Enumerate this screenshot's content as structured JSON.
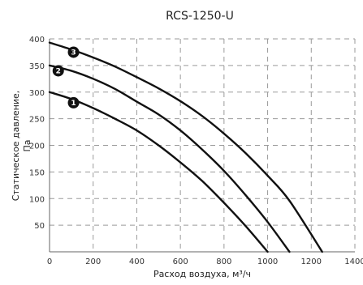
{
  "chart_data": {
    "type": "line",
    "title": "RCS-1250-U",
    "xlabel": "Расход воздуха, м³/ч",
    "ylabel_line1": "Статическое давление,",
    "ylabel_line2": "Па",
    "xlim": [
      0,
      1400
    ],
    "ylim": [
      0,
      400
    ],
    "x_ticks": [
      0,
      200,
      400,
      600,
      800,
      1000,
      1200,
      1400
    ],
    "y_ticks": [
      50,
      100,
      150,
      200,
      250,
      300,
      350,
      400
    ],
    "grid": true,
    "series": [
      {
        "name": "1",
        "x": [
          0,
          100,
          200,
          300,
          400,
          500,
          600,
          700,
          800,
          900,
          1000
        ],
        "y": [
          300,
          287,
          270,
          250,
          228,
          200,
          168,
          133,
          92,
          48,
          0
        ]
      },
      {
        "name": "2",
        "x": [
          0,
          100,
          200,
          300,
          400,
          500,
          600,
          700,
          800,
          900,
          1000,
          1100
        ],
        "y": [
          350,
          340,
          325,
          306,
          282,
          258,
          228,
          192,
          152,
          106,
          56,
          0
        ]
      },
      {
        "name": "3",
        "x": [
          0,
          100,
          200,
          300,
          400,
          500,
          600,
          700,
          800,
          900,
          1000,
          1100,
          1250
        ],
        "y": [
          393,
          380,
          365,
          348,
          328,
          307,
          283,
          255,
          222,
          185,
          143,
          96,
          0
        ]
      }
    ],
    "markers": [
      {
        "series": "1",
        "label": "1",
        "x": 110,
        "y": 280
      },
      {
        "series": "2",
        "label": "2",
        "x": 40,
        "y": 340
      },
      {
        "series": "3",
        "label": "3",
        "x": 110,
        "y": 375
      }
    ]
  }
}
